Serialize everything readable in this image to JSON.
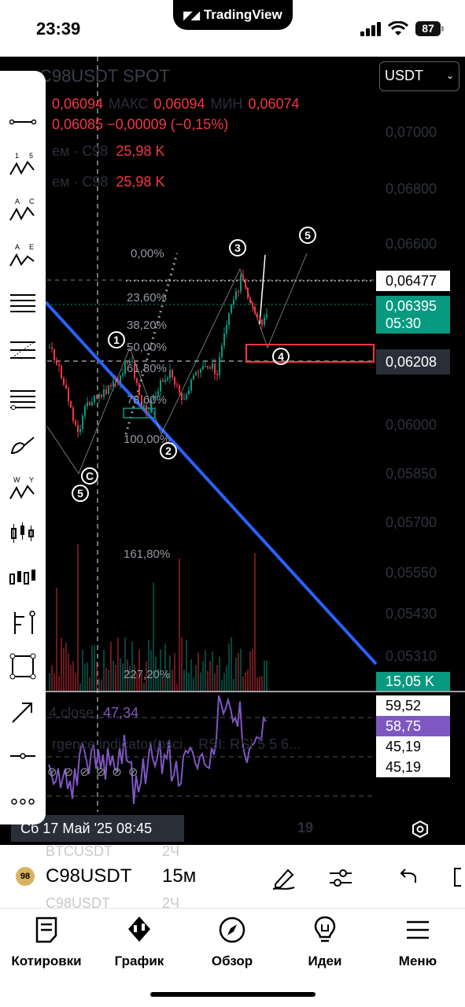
{
  "status": {
    "time": "23:39",
    "app_pill": "TradingView",
    "battery": "87"
  },
  "chart": {
    "symbol_title": "C98USDT SPOT",
    "currency": "USDT",
    "ohlc": {
      "open": "0,06094",
      "max_label": "МАКС",
      "max": "0,06094",
      "min_label": "МИН",
      "min": "0,06074",
      "close": "0,06085",
      "change": "−0,00009 (−0,15%)"
    },
    "volume_rows": [
      {
        "label": "ем · С98",
        "value": "25,98 K"
      },
      {
        "label": "ем · С98",
        "value": "25,98 K"
      }
    ],
    "price_axis": [
      "0,07000",
      "0,06800",
      "0,06600",
      "0,06000",
      "0,05850",
      "0,05700",
      "0,05550",
      "0,05430",
      "0,05310"
    ],
    "tags": {
      "level_line": "0,06477",
      "last_price": "0,06395",
      "countdown": "05:30",
      "crosshair": "0,06208",
      "volume": "15,05 K",
      "rsi_upper": "59,52",
      "rsi_value": "58,75",
      "rsi_mid1": "45,19",
      "rsi_mid2": "45,19"
    },
    "fib_levels": [
      "0,00%",
      "23,60%",
      "38,20%",
      "50,00%",
      "61,80%",
      "78,60%",
      "100,00%",
      "161,80%",
      "227,20%"
    ],
    "wave_labels": [
      "1",
      "2",
      "3",
      "4",
      "5",
      "5",
      "C"
    ],
    "rsi": {
      "label": "4 close",
      "value": "47,34",
      "indicator_text": "rgence indicator(osci... RSI: RSI 5 5 6..."
    },
    "date_tag": "Сб 17 Май '25   08:45",
    "date_axis_label": "19",
    "chart_data": {
      "type": "candlestick",
      "symbol": "C98USDT",
      "timeframe": "15м",
      "last_price": 0.06395,
      "close": 0.06085,
      "open": 0.06094,
      "high": 0.06094,
      "low": 0.06074,
      "marked_levels": [
        0.06477,
        0.06208
      ],
      "price_axis_ticks": [
        0.07,
        0.068,
        0.066,
        0.06,
        0.0585,
        0.057,
        0.0555,
        0.0543,
        0.0531
      ],
      "rsi_value": 58.75
    }
  },
  "toolbar": {
    "tools": [
      "trend-line",
      "elliott-impulse",
      "elliott-correction-abc",
      "elliott-triangle",
      "fib-retracement",
      "fib-extension",
      "fib-channel",
      "brush",
      "elliott-wxy",
      "long-candles",
      "short-candles",
      "pitchfork",
      "rectangle",
      "arrow",
      "horizontal-ray",
      "more"
    ]
  },
  "symbol_bar": {
    "symbol": "C98USDT",
    "timeframe": "15м",
    "ghost_top": "BTCUSDT",
    "ghost_top_tf": "2Ч",
    "ghost_bottom": "C98USDT",
    "ghost_bottom_tf": "2Ч"
  },
  "tabs": [
    {
      "label": "Котировки",
      "icon": "watchlist-icon"
    },
    {
      "label": "График",
      "icon": "chart-icon"
    },
    {
      "label": "Обзор",
      "icon": "compass-icon"
    },
    {
      "label": "Идеи",
      "icon": "lightbulb-icon"
    },
    {
      "label": "Меню",
      "icon": "menu-icon"
    }
  ],
  "colors": {
    "up": "#089981",
    "down": "#f23645",
    "trendline": "#2962ff",
    "rsi": "#7e57c2"
  }
}
